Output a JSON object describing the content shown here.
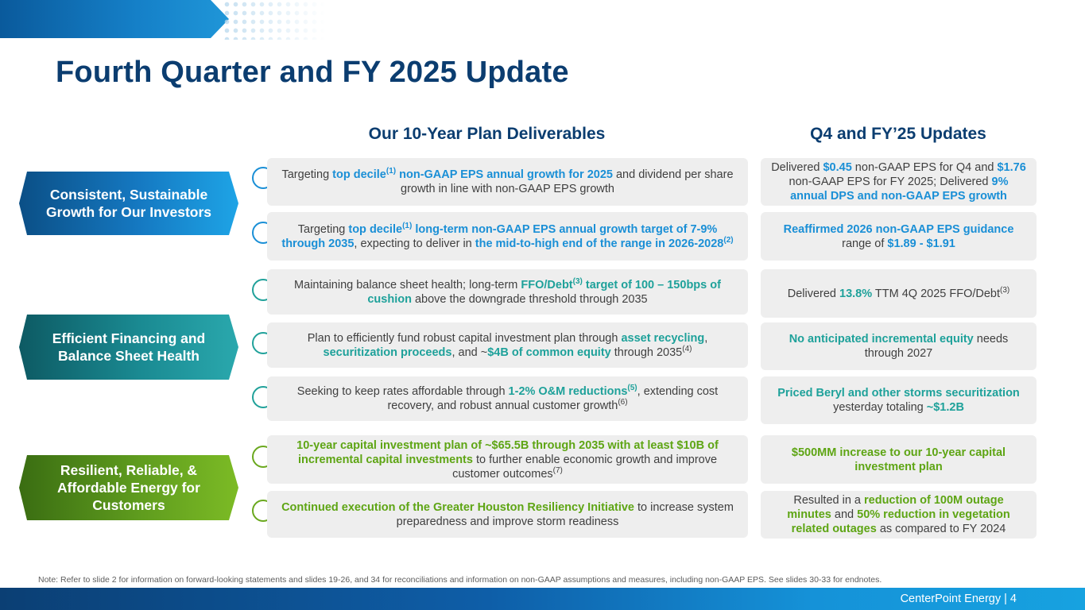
{
  "slide_title": "Fourth Quarter and FY 2025 Update",
  "columns": {
    "left_heading": "Our 10-Year Plan Deliverables",
    "right_heading": "Q4 and FY’25 Updates"
  },
  "pillars": [
    "Consistent, Sustainable Growth for Our Investors",
    "Efficient Financing and Balance Sheet Health",
    "Resilient, Reliable, & Affordable Energy for Customers"
  ],
  "rows": [
    {
      "deliverable": [
        {
          "t": "Targeting "
        },
        {
          "t": "top decile",
          "c": "hb"
        },
        {
          "t": "(1)",
          "c": "hb",
          "sup": true
        },
        {
          "t": " non-GAAP EPS annual growth for 2025",
          "c": "hb"
        },
        {
          "t": " and dividend per share growth in line with non-GAAP EPS growth"
        }
      ],
      "update": [
        {
          "t": "Delivered "
        },
        {
          "t": "$0.45",
          "c": "hb"
        },
        {
          "t": " non-GAAP EPS for Q4 and "
        },
        {
          "t": "$1.76",
          "c": "hb"
        },
        {
          "t": " non-GAAP EPS for FY 2025; Delivered "
        },
        {
          "t": "9% annual DPS and non-GAAP EPS growth",
          "c": "hb"
        }
      ]
    },
    {
      "deliverable": [
        {
          "t": "Targeting "
        },
        {
          "t": "top decile",
          "c": "hb"
        },
        {
          "t": "(1)",
          "c": "hb",
          "sup": true
        },
        {
          "t": " long-term non-GAAP EPS annual growth target of 7-9% through 2035",
          "c": "hb"
        },
        {
          "t": ", expecting to deliver in "
        },
        {
          "t": "the mid-to-high end of the range in 2026-2028",
          "c": "hb"
        },
        {
          "t": "(2)",
          "c": "hb",
          "sup": true
        }
      ],
      "update": [
        {
          "t": "Reaffirmed 2026 non-GAAP EPS guidance",
          "c": "hb"
        },
        {
          "t": " range of "
        },
        {
          "t": "$1.89 - $1.91",
          "c": "hb"
        }
      ]
    },
    {
      "deliverable": [
        {
          "t": "Maintaining balance sheet health; long-term "
        },
        {
          "t": "FFO/Debt",
          "c": "ht"
        },
        {
          "t": "(3)",
          "c": "ht",
          "sup": true
        },
        {
          "t": " target of 100 – 150bps of cushion",
          "c": "ht"
        },
        {
          "t": " above the downgrade threshold through 2035"
        }
      ],
      "update": [
        {
          "t": "Delivered "
        },
        {
          "t": "13.8%",
          "c": "ht"
        },
        {
          "t": " TTM 4Q 2025 FFO/Debt"
        },
        {
          "t": "(3)",
          "sup": true
        }
      ]
    },
    {
      "deliverable": [
        {
          "t": "Plan to efficiently fund robust capital investment plan through "
        },
        {
          "t": "asset recycling",
          "c": "ht"
        },
        {
          "t": ", "
        },
        {
          "t": "securitization proceeds",
          "c": "ht"
        },
        {
          "t": ", and ~"
        },
        {
          "t": "$4B of common equity",
          "c": "ht"
        },
        {
          "t": " through 2035"
        },
        {
          "t": "(4)",
          "sup": true
        }
      ],
      "update": [
        {
          "t": "No anticipated incremental equity",
          "c": "ht"
        },
        {
          "t": " needs through 2027"
        }
      ]
    },
    {
      "deliverable": [
        {
          "t": "Seeking to keep rates affordable through "
        },
        {
          "t": "1-2% O&M reductions",
          "c": "ht"
        },
        {
          "t": "(5)",
          "c": "ht",
          "sup": true
        },
        {
          "t": ", extending cost recovery, and robust annual customer growth"
        },
        {
          "t": "(6)",
          "sup": true
        }
      ],
      "update": [
        {
          "t": "Priced Beryl and other storms securitization",
          "c": "ht"
        },
        {
          "t": " yesterday totaling "
        },
        {
          "t": "~$1.2B",
          "c": "ht"
        }
      ]
    },
    {
      "deliverable": [
        {
          "t": "10-year capital investment plan of ~$65.5B through 2035 with at least $10B of incremental capital investments",
          "c": "hg"
        },
        {
          "t": " to further enable economic growth and improve customer outcomes"
        },
        {
          "t": "(7)",
          "sup": true
        }
      ],
      "update": [
        {
          "t": "$500MM increase to our 10-year capital investment plan",
          "c": "hg"
        }
      ]
    },
    {
      "deliverable": [
        {
          "t": "Continued execution of the Greater Houston Resiliency Initiative",
          "c": "hg"
        },
        {
          "t": " to increase system preparedness and improve storm readiness"
        }
      ],
      "update": [
        {
          "t": "Resulted in a "
        },
        {
          "t": "reduction of 100M outage minutes",
          "c": "hg"
        },
        {
          "t": " and "
        },
        {
          "t": "50% reduction in vegetation related outages",
          "c": "hg"
        },
        {
          "t": " as compared to FY 2024"
        }
      ]
    }
  ],
  "footnote": "Note: Refer to slide 2 for information on forward-looking statements and slides 19-26, and 34 for reconciliations and information on non-GAAP assumptions and measures, including non-GAAP EPS. See slides 30-33 for endnotes.",
  "footer": "CenterPoint Energy | 4",
  "colors": {
    "navy": "#0b3d70",
    "blue": "#1a8fd6",
    "teal": "#1ea19a",
    "green": "#5ea514"
  }
}
